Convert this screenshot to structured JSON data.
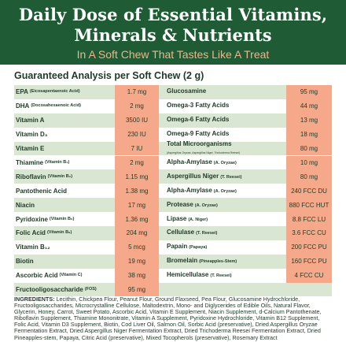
{
  "header": {
    "title_line1": "Daily Dose of Essential Vitamins,",
    "title_line2": "Minerals & Nutrients",
    "tagline": "In A Soft Chew That Tastes Like A Treat"
  },
  "analysis_title": "Guaranteed Analysis per Soft Chew (2 g)",
  "left_items": [
    {
      "name": "EPA",
      "sub": "(Eicosapentaenoic Acid)",
      "value": "1.7 mg"
    },
    {
      "name": "DHA",
      "sub": "(Docosahexaenoic Acid)",
      "value": "2 mg"
    },
    {
      "name": "Vitamin A",
      "sub": "",
      "value": "3500 IU"
    },
    {
      "name": "Vitamin D₃",
      "sub": "",
      "value": "230 IU"
    },
    {
      "name": "Vitamin E",
      "sub": "",
      "value": "7 IU"
    },
    {
      "name": "Thiamine",
      "sub": "(Vitamin B₁)",
      "value": "2 mg"
    },
    {
      "name": "Riboflavin",
      "sub": "(Vitamin B₂)",
      "value": "1.15 mg"
    },
    {
      "name": "Pantothenic Acid",
      "sub": "",
      "value": "1.38 mg"
    },
    {
      "name": "Niacin",
      "sub": "",
      "value": "17 mg"
    },
    {
      "name": "Pyridoxine",
      "sub": "(Vitamin B₆)",
      "value": "1.36 mg"
    },
    {
      "name": "Folic Acid",
      "sub": "(Vitamin B₉)",
      "value": "204 mg"
    },
    {
      "name": "Vitamin B₁₂",
      "sub": "",
      "value": "5 mcg"
    },
    {
      "name": "Biotin",
      "sub": "",
      "value": "19 mg"
    },
    {
      "name": "Ascorbic Acid",
      "sub": "(Vitamin C)",
      "value": "38 mg"
    },
    {
      "name": "Fructooligosaccharide",
      "sub": "(FOS)",
      "value": "95 mg"
    }
  ],
  "right_items": [
    {
      "name": "Glucosamine",
      "sub": "",
      "sub2": "",
      "value": "95 mg"
    },
    {
      "name": "Omega-3 Fatty Acids",
      "sub": "",
      "sub2": "",
      "value": "44 mg"
    },
    {
      "name": "Omega-6 Fatty Acids",
      "sub": "",
      "sub2": "",
      "value": "13 mg"
    },
    {
      "name": "Omega-9 Fatty Acids",
      "sub": "",
      "sub2": "",
      "value": "18 mg"
    },
    {
      "name": "Total Microorganisms",
      "sub": "",
      "sub2": "(Aspergillus Oryzae, Aspergillus Niger, Trichoderma Reesei)",
      "value": "80 mg"
    },
    {
      "name": "Alpha-Amylase",
      "sub": "(A. Oryzae)",
      "sub2": "",
      "value": "10 mg"
    },
    {
      "name": "Aspergillus Niger",
      "sub": "(T. Reesei)",
      "sub2": "",
      "value": "80 mg"
    },
    {
      "name": "Alpha-Amylase",
      "sub": "(A. Oryzae)",
      "sub2": "",
      "value": "240 FCC DU"
    },
    {
      "name": "Protease",
      "sub": "(A. Oryzae)",
      "sub2": "",
      "value": "880 FCC HUT"
    },
    {
      "name": "Lipase",
      "sub": "(A. Niger)",
      "sub2": "",
      "value": "8.8 FCC LU"
    },
    {
      "name": "Cellulase",
      "sub": "(T. Reesei)",
      "sub2": "",
      "value": "3.6 FCC CU"
    },
    {
      "name": "Papain",
      "sub": "(Papaya)",
      "sub2": "",
      "value": "200 FCC PU"
    },
    {
      "name": "Bromelain",
      "sub": "(Pineapples-Stem)",
      "sub2": "",
      "value": "160 FCC PU"
    },
    {
      "name": "Hemicellulase",
      "sub": "(T. Reesei)",
      "sub2": "",
      "value": "4 FCC CU"
    },
    {
      "name": "",
      "sub": "",
      "sub2": "",
      "value": ""
    }
  ],
  "ingredients": {
    "label": "INGREDIENTS:",
    "text": " Lecithin, Chickpea Flour, Peanut Flour, Ground Flaxseed, Pea Flour, Glucosamine Hydrochloride, Fructooligosaccharides, Microcrystalline Cellulose, Maltodextrin, Mono- and Diglycerides of Edible Oils, Natural Flavor, Glycerin, Honey, Carrot, Sweet Potato, Ascorbic Acid, Vitamin E Supplement, Niacin Supplement, d-Calcium Pantothenate, Riboflavin Supplement, Thiamine Mononitrate, Vitamin A Supplement, Pyridoxine Hydrochloride, Vitamin B12 Supplement, Folic Acid, Vitamin D3 Supplement, Biotin, Cod Liver Oil, Salmon Oil, Sorbic Acid (preservative), Dried Aspergillus Oryzae Fermentation Extract, Dried Aspergillus Niger Fermentation Extract, Dried Trichoderma Reesei Fermentation Extract, Dried Pineapples-stem, Papaya, Citric Acid (preservative), Mixed Tocopherols (preservative), Rosemary Extract"
  },
  "colors": {
    "banner_green": "#1f5b34",
    "tagline_peach": "#f2b38a",
    "row_green": "#d9e7d2",
    "value_peach": "#f6a98a"
  }
}
